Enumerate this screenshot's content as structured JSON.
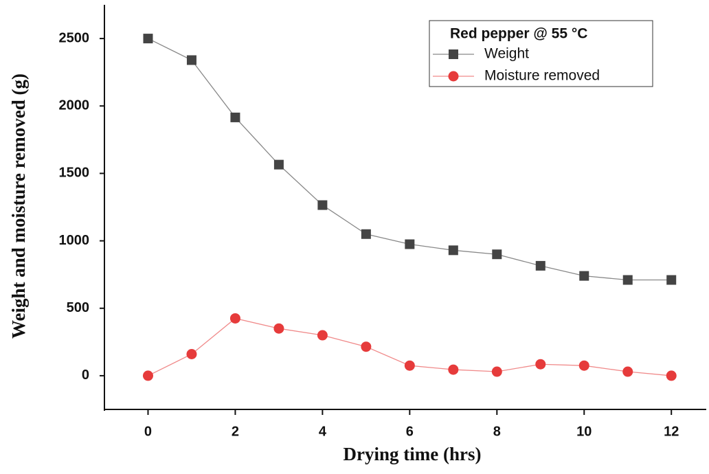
{
  "chart_data": {
    "type": "line",
    "legend_title": "Red pepper @ 55 °C",
    "x_label": "Drying time (hrs)",
    "y_label": "Weight and moisture removed (g)",
    "x": [
      0,
      1,
      2,
      3,
      4,
      5,
      6,
      7,
      8,
      9,
      10,
      11,
      12
    ],
    "series": [
      {
        "name": "Weight",
        "color": "#444444",
        "line_color": "#888888",
        "marker": "square",
        "values": [
          2500,
          2340,
          1915,
          1565,
          1265,
          1050,
          975,
          930,
          900,
          815,
          740,
          710,
          710
        ]
      },
      {
        "name": "Moisture removed",
        "color": "#e63b3b",
        "line_color": "#f08a8a",
        "marker": "circle",
        "values": [
          0,
          160,
          425,
          350,
          300,
          215,
          75,
          45,
          30,
          85,
          75,
          30,
          0
        ]
      }
    ],
    "xlim": [
      -1,
      12.8
    ],
    "xticks": [
      0,
      2,
      4,
      6,
      8,
      10,
      12
    ],
    "ylim": [
      -250,
      2750
    ],
    "yticks": [
      0,
      500,
      1000,
      1500,
      2000,
      2500
    ],
    "legend": "upper right"
  }
}
